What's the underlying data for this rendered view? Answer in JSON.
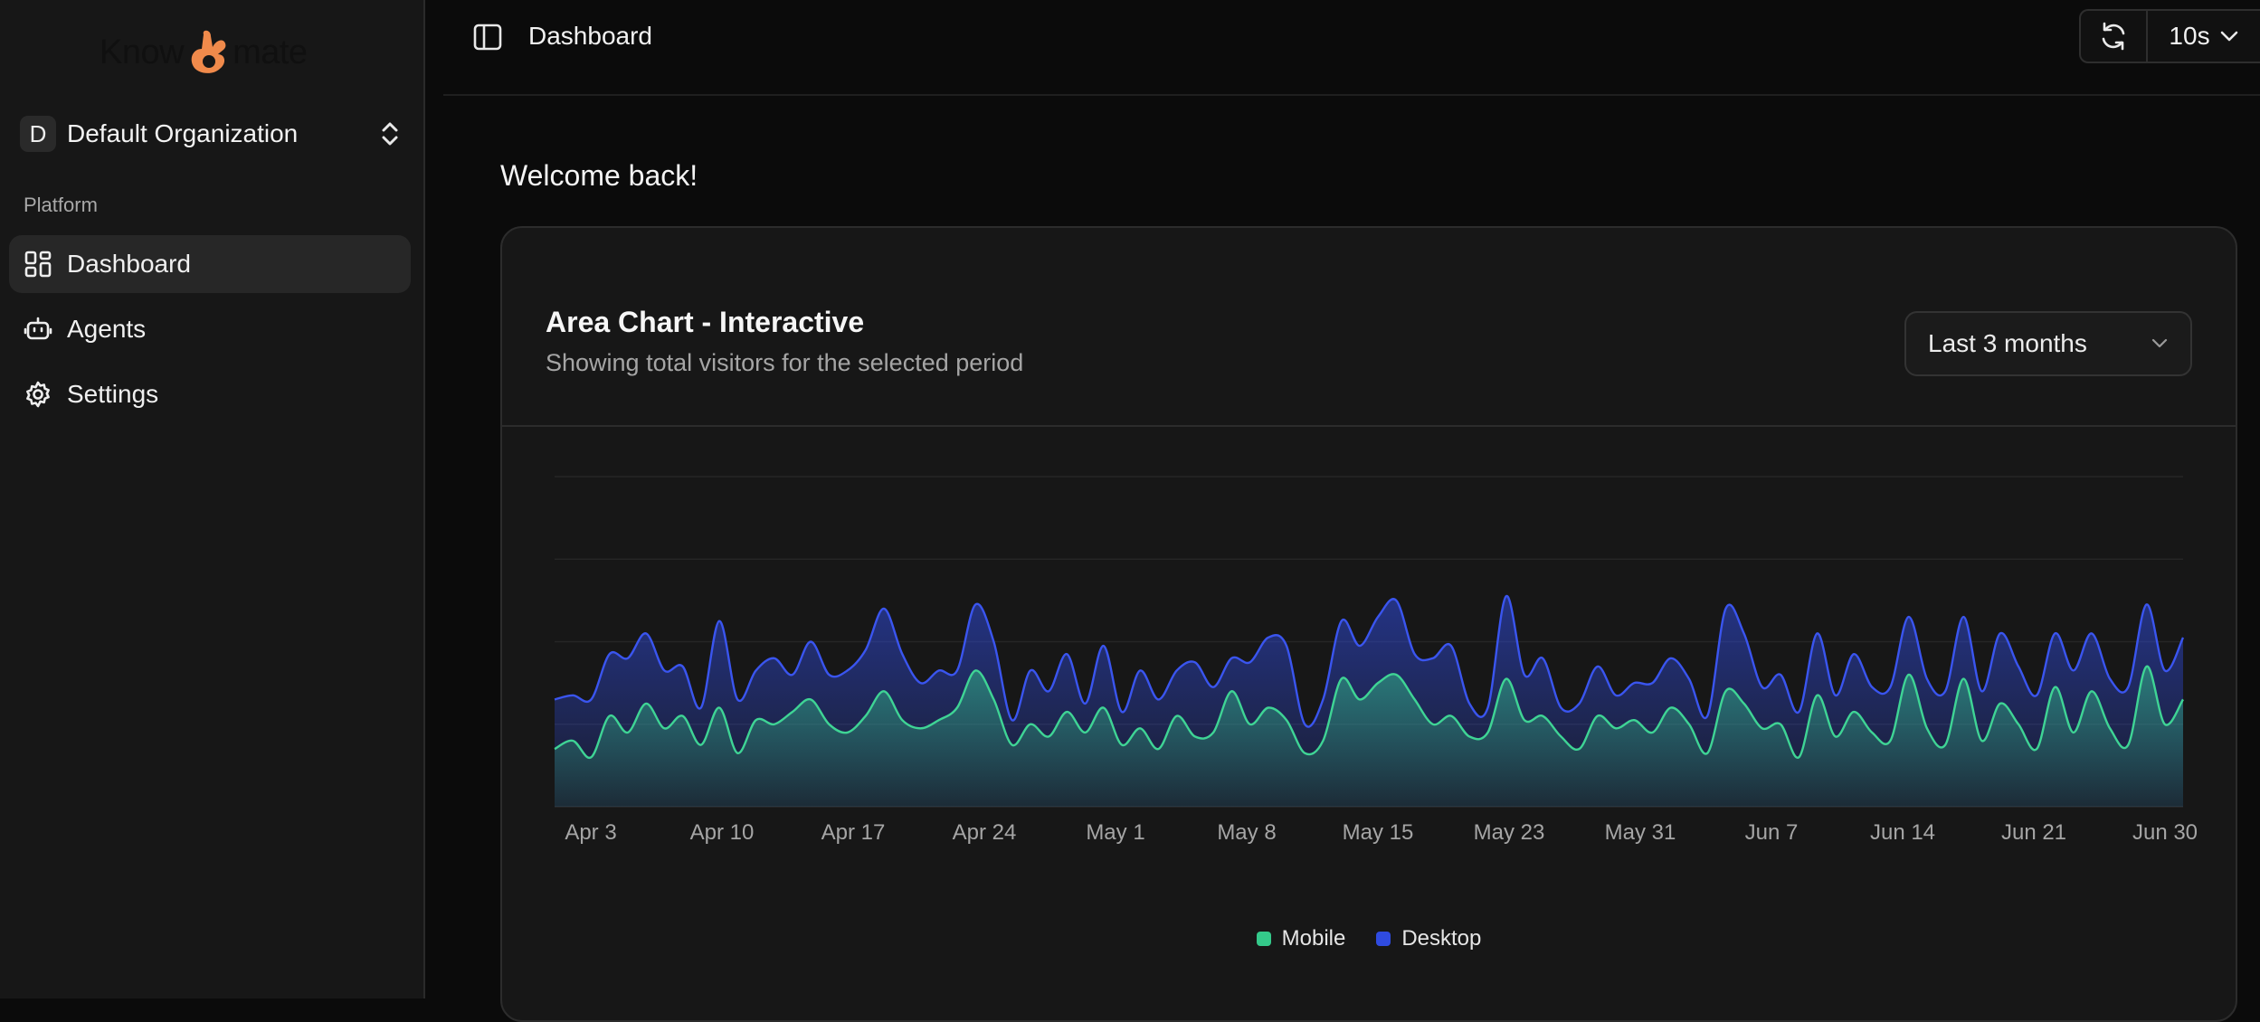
{
  "brand": {
    "left": "Know",
    "right": "mate"
  },
  "org": {
    "initial": "D",
    "name": "Default Organization"
  },
  "sidebar": {
    "section_label": "Platform",
    "items": [
      {
        "label": "Dashboard",
        "icon": "dashboard-grid-icon",
        "active": true
      },
      {
        "label": "Agents",
        "icon": "bot-icon",
        "active": false
      },
      {
        "label": "Settings",
        "icon": "gear-icon",
        "active": false
      }
    ]
  },
  "header": {
    "breadcrumb": "Dashboard",
    "refresh_interval": "10s"
  },
  "main": {
    "welcome": "Welcome back!"
  },
  "card": {
    "title": "Area Chart - Interactive",
    "subtitle": "Showing total visitors for the selected period",
    "range": "Last 3 months"
  },
  "colors": {
    "mobile": "#34c98a",
    "desktop": "#2f4be0",
    "background": "#0b0b0b",
    "card": "#171717"
  },
  "chart_data": {
    "type": "area",
    "stacked": true,
    "grid": true,
    "legend_position": "bottom",
    "x_ticks": [
      "Apr 3",
      "Apr 10",
      "Apr 17",
      "Apr 24",
      "May 1",
      "May 8",
      "May 15",
      "May 23",
      "May 31",
      "Jun 7",
      "Jun 14",
      "Jun 21",
      "Jun 30"
    ],
    "x_range": [
      "Apr 1",
      "Jun 30"
    ],
    "series": [
      {
        "name": "Mobile",
        "color": "#34c98a",
        "values": [
          140,
          160,
          120,
          220,
          180,
          250,
          190,
          220,
          150,
          240,
          130,
          210,
          200,
          230,
          260,
          200,
          180,
          220,
          280,
          210,
          190,
          210,
          240,
          330,
          260,
          150,
          200,
          170,
          230,
          180,
          240,
          150,
          190,
          140,
          220,
          170,
          180,
          280,
          200,
          240,
          210,
          130,
          160,
          310,
          260,
          300,
          320,
          260,
          200,
          220,
          170,
          180,
          310,
          210,
          220,
          170,
          140,
          220,
          190,
          210,
          180,
          240,
          200,
          130,
          280,
          250,
          190,
          200,
          120,
          270,
          170,
          230,
          180,
          160,
          320,
          190,
          150,
          310,
          160,
          250,
          200,
          140,
          290,
          180,
          280,
          190,
          150,
          340,
          200,
          260
        ]
      },
      {
        "name": "Desktop",
        "color": "#2f4be0",
        "values": [
          120,
          110,
          140,
          150,
          180,
          170,
          140,
          120,
          90,
          210,
          130,
          120,
          160,
          90,
          140,
          120,
          150,
          160,
          200,
          160,
          110,
          120,
          90,
          160,
          140,
          60,
          130,
          110,
          140,
          70,
          150,
          80,
          140,
          120,
          110,
          180,
          110,
          80,
          150,
          170,
          180,
          70,
          100,
          140,
          130,
          160,
          180,
          110,
          160,
          170,
          80,
          60,
          200,
          110,
          140,
          70,
          110,
          120,
          80,
          90,
          120,
          120,
          110,
          90,
          200,
          170,
          100,
          120,
          110,
          150,
          100,
          140,
          110,
          130,
          140,
          120,
          130,
          150,
          120,
          170,
          140,
          130,
          130,
          150,
          140,
          120,
          140,
          150,
          130,
          150
        ]
      }
    ]
  }
}
